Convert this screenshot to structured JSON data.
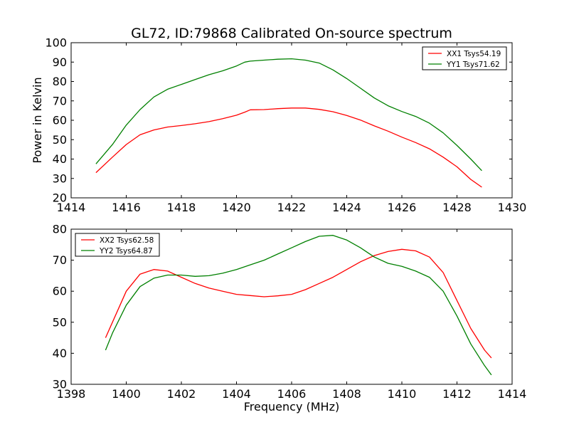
{
  "figure": {
    "title": "GL72, ID:79868 Calibrated On-source spectrum",
    "ylabel": "Power in Kelvin",
    "xlabel": "Frequency (MHz)"
  },
  "colors": {
    "red": "#ff0000",
    "green": "#008000"
  },
  "chart_data": [
    {
      "type": "line",
      "title": "GL72, ID:79868 Calibrated On-source spectrum",
      "ylabel": "Power in Kelvin",
      "xlabel": "",
      "xlim": [
        1414,
        1430
      ],
      "ylim": [
        20,
        100
      ],
      "xticks": [
        "1414",
        "1416",
        "1418",
        "1420",
        "1422",
        "1424",
        "1426",
        "1428",
        "1430"
      ],
      "yticks": [
        "20",
        "30",
        "40",
        "50",
        "60",
        "70",
        "80",
        "90",
        "100"
      ],
      "legend_position": "top-right",
      "grid": false,
      "series": [
        {
          "name": "XX1 Tsys54.19",
          "color": "#ff0000",
          "x": [
            1414.9,
            1415.5,
            1416.0,
            1416.5,
            1417.0,
            1417.5,
            1418.0,
            1418.5,
            1419.0,
            1419.5,
            1420.0,
            1420.3,
            1420.5,
            1421.0,
            1421.5,
            1422.0,
            1422.5,
            1423.0,
            1423.5,
            1424.0,
            1424.5,
            1425.0,
            1425.5,
            1426.0,
            1426.5,
            1427.0,
            1427.5,
            1428.0,
            1428.5,
            1428.9
          ],
          "y": [
            33,
            41,
            47.5,
            52.5,
            55,
            56.5,
            57.3,
            58.2,
            59.3,
            60.8,
            62.6,
            64.2,
            65.4,
            65.5,
            66,
            66.3,
            66.3,
            65.6,
            64.4,
            62.5,
            60.1,
            57.1,
            54.4,
            51.3,
            48.5,
            45.3,
            41,
            36,
            29.5,
            25.5
          ]
        },
        {
          "name": "YY1 Tsys71.62",
          "color": "#008000",
          "x": [
            1414.9,
            1415.5,
            1416.0,
            1416.5,
            1417.0,
            1417.5,
            1418.0,
            1418.5,
            1419.0,
            1419.5,
            1420.0,
            1420.3,
            1420.5,
            1421.0,
            1421.5,
            1422.0,
            1422.5,
            1423.0,
            1423.5,
            1424.0,
            1424.5,
            1425.0,
            1425.5,
            1426.0,
            1426.5,
            1427.0,
            1427.5,
            1428.0,
            1428.5,
            1428.9
          ],
          "y": [
            37.5,
            47.5,
            57.5,
            65.5,
            72,
            76,
            78.5,
            81,
            83.5,
            85.5,
            88,
            90,
            90.5,
            91,
            91.5,
            91.7,
            91,
            89.5,
            86,
            81.5,
            76.5,
            71.5,
            67.5,
            64.5,
            62,
            58.5,
            53.5,
            47,
            40,
            34
          ]
        }
      ]
    },
    {
      "type": "line",
      "title": "",
      "ylabel": "",
      "xlabel": "Frequency (MHz)",
      "xlim": [
        1398,
        1414
      ],
      "ylim": [
        30,
        80
      ],
      "xticks": [
        "1398",
        "1400",
        "1402",
        "1404",
        "1406",
        "1408",
        "1410",
        "1412",
        "1414"
      ],
      "yticks": [
        "30",
        "40",
        "50",
        "60",
        "70",
        "80"
      ],
      "legend_position": "top-left",
      "grid": false,
      "series": [
        {
          "name": "XX2 Tsys62.58",
          "color": "#ff0000",
          "x": [
            1399.25,
            1399.5,
            1400.0,
            1400.5,
            1401.0,
            1401.5,
            1402.0,
            1402.5,
            1403.0,
            1403.5,
            1404.0,
            1404.5,
            1405.0,
            1405.5,
            1406.0,
            1406.5,
            1407.0,
            1407.5,
            1408.0,
            1408.5,
            1409.0,
            1409.5,
            1410.0,
            1410.5,
            1411.0,
            1411.5,
            1412.0,
            1412.5,
            1413.0,
            1413.25
          ],
          "y": [
            45,
            50,
            60,
            65.5,
            67,
            66.5,
            64.5,
            62.5,
            61,
            60,
            59,
            58.6,
            58.2,
            58.5,
            59,
            60.5,
            62.5,
            64.5,
            67,
            69.5,
            71.5,
            72.8,
            73.5,
            73,
            71,
            66,
            57,
            48,
            41,
            38.5
          ]
        },
        {
          "name": "YY2 Tsys64.87",
          "color": "#008000",
          "x": [
            1399.25,
            1399.5,
            1400.0,
            1400.5,
            1401.0,
            1401.5,
            1402.0,
            1402.5,
            1403.0,
            1403.5,
            1404.0,
            1404.5,
            1405.0,
            1405.5,
            1406.0,
            1406.5,
            1407.0,
            1407.5,
            1408.0,
            1408.5,
            1409.0,
            1409.5,
            1410.0,
            1410.5,
            1411.0,
            1411.5,
            1412.0,
            1412.5,
            1413.0,
            1413.25
          ],
          "y": [
            41,
            46.5,
            55.5,
            61.5,
            64.2,
            65.2,
            65.2,
            64.8,
            65,
            65.8,
            67,
            68.5,
            70,
            72,
            74,
            76,
            77.7,
            78,
            76.5,
            74,
            71,
            69,
            68,
            66.5,
            64.5,
            60,
            52,
            43,
            36,
            33
          ]
        }
      ]
    }
  ]
}
